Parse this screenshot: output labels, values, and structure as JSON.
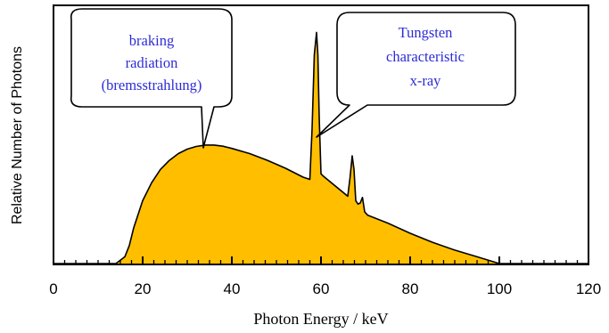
{
  "chart_data": {
    "type": "area",
    "xlabel": "Photon Energy / keV",
    "ylabel": "Relative Number of Photons",
    "xlim": [
      0,
      120
    ],
    "ylim": [
      0,
      100
    ],
    "x_ticks": [
      0,
      20,
      40,
      60,
      80,
      100,
      120
    ],
    "y_ticks_shown": false,
    "grid": false,
    "fill_color": "#ffbf00",
    "outline_color": "#000000",
    "callout_text_color": "#2c2cd6",
    "series": [
      {
        "x": [
          0,
          14,
          16,
          17,
          18,
          20,
          22,
          24,
          26,
          28,
          30,
          32,
          34,
          36,
          38,
          40,
          44,
          48,
          52,
          56,
          57.5,
          58,
          58.5,
          59,
          59.3,
          59.6,
          60,
          60.5,
          66,
          66.5,
          67,
          67.4,
          67.8,
          68.3,
          68.8,
          69.3,
          69.8,
          70.5,
          75,
          80,
          85,
          90,
          95,
          100,
          120
        ],
        "y": [
          0,
          0,
          3,
          8,
          16,
          28,
          36,
          42,
          46,
          49,
          51,
          52.2,
          52.8,
          52.8,
          52.3,
          51.3,
          49,
          46,
          42.5,
          38.5,
          37.5,
          60,
          93,
          103,
          93,
          65,
          40,
          39,
          30,
          38,
          48,
          42,
          28,
          26.5,
          27,
          29.5,
          23,
          21.5,
          18,
          13.5,
          9.5,
          6,
          3,
          0,
          0
        ]
      }
    ],
    "annotations": [
      {
        "lines": [
          "braking",
          "radiation",
          "(bremsstrahlung)"
        ],
        "points_to": {
          "x": 34,
          "y": 52.8
        }
      },
      {
        "lines": [
          "Tungsten",
          "characteristic",
          "x-ray"
        ],
        "points_to": {
          "x": 59.2,
          "y": 63
        }
      }
    ]
  }
}
